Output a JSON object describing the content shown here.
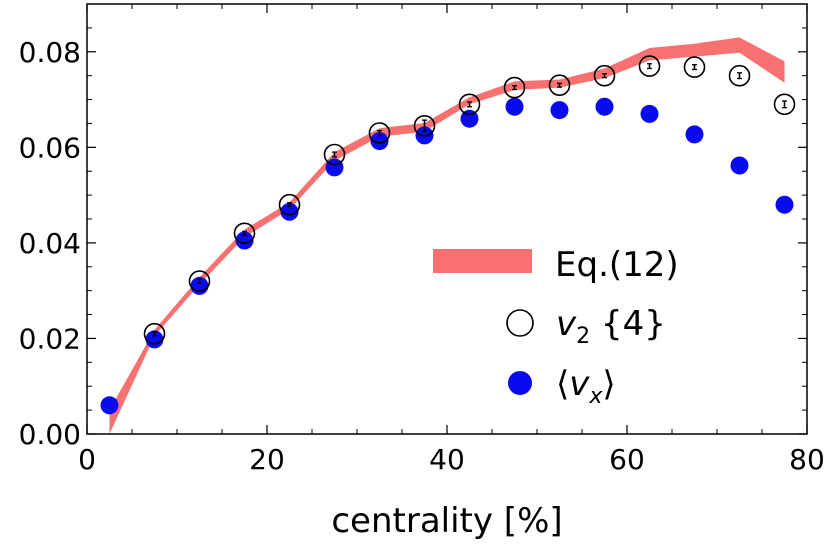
{
  "chart_data": {
    "type": "scatter",
    "title": "",
    "xlabel": "centrality [%]",
    "ylabel": "",
    "xlim": [
      0,
      80
    ],
    "ylim": [
      0,
      0.09
    ],
    "xticks": [
      0,
      20,
      40,
      60,
      80
    ],
    "xtick_labels": [
      "0",
      "20",
      "40",
      "60",
      "80"
    ],
    "yticks": [
      0,
      0.02,
      0.04,
      0.06,
      0.08
    ],
    "ytick_labels": [
      "0.00",
      "0.02",
      "0.04",
      "0.06",
      "0.08"
    ],
    "grid": false,
    "legend_position": "right",
    "series": [
      {
        "name": "Eq.(12)",
        "style": "band",
        "color": "#f87171",
        "x": [
          2.5,
          7.5,
          12.5,
          17.5,
          22.5,
          27.5,
          32.5,
          37.5,
          42.5,
          47.5,
          52.5,
          57.5,
          62.5,
          67.5,
          72.5,
          77.5
        ],
        "y_low": [
          0.0,
          0.0205,
          0.0313,
          0.0412,
          0.047,
          0.0572,
          0.0622,
          0.0633,
          0.069,
          0.072,
          0.0725,
          0.0745,
          0.0782,
          0.079,
          0.0798,
          0.0735
        ],
        "y_high": [
          0.005,
          0.0218,
          0.0328,
          0.0428,
          0.0485,
          0.059,
          0.064,
          0.0651,
          0.0705,
          0.0738,
          0.0742,
          0.0765,
          0.0808,
          0.0817,
          0.083,
          0.078
        ]
      },
      {
        "name_main": "v",
        "name_sub": "2",
        "name_suffix": " {4}",
        "style": "open-circle",
        "color": "#000000",
        "x": [
          7.5,
          12.5,
          17.5,
          22.5,
          27.5,
          32.5,
          37.5,
          42.5,
          47.5,
          52.5,
          57.5,
          62.5,
          67.5,
          72.5,
          77.5
        ],
        "y": [
          0.021,
          0.032,
          0.042,
          0.048,
          0.0585,
          0.063,
          0.0645,
          0.069,
          0.0725,
          0.073,
          0.075,
          0.077,
          0.0768,
          0.075,
          0.069
        ],
        "yerr": [
          0.0004,
          0.0004,
          0.0004,
          0.0004,
          0.0005,
          0.0005,
          0.0012,
          0.0005,
          0.0004,
          0.0004,
          0.0004,
          0.0005,
          0.0005,
          0.0006,
          0.0007
        ]
      },
      {
        "name_open": "⟨",
        "name_main": "v",
        "name_sub": "x",
        "name_close": "⟩",
        "style": "filled-circle",
        "color": "#0a0aee",
        "x": [
          2.5,
          7.5,
          12.5,
          17.5,
          22.5,
          27.5,
          32.5,
          37.5,
          42.5,
          47.5,
          52.5,
          57.5,
          62.5,
          67.5,
          72.5,
          77.5
        ],
        "y": [
          0.006,
          0.0198,
          0.031,
          0.0405,
          0.0465,
          0.0558,
          0.0613,
          0.0625,
          0.066,
          0.0685,
          0.0678,
          0.0685,
          0.067,
          0.0627,
          0.0562,
          0.048
        ]
      }
    ]
  }
}
